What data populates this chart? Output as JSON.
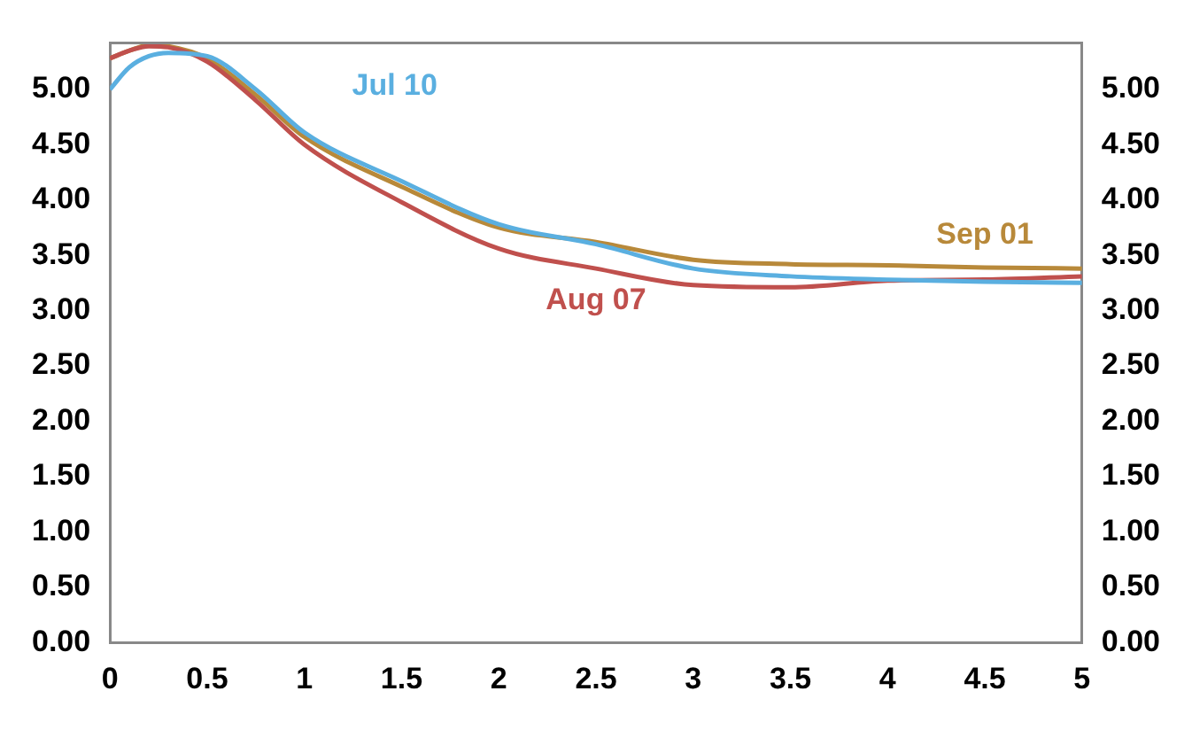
{
  "chart_data": {
    "type": "line",
    "x": [
      0,
      0.1,
      0.2,
      0.3,
      0.5,
      0.75,
      1,
      1.5,
      2,
      2.5,
      3,
      3.5,
      4,
      4.5,
      5
    ],
    "series": [
      {
        "name": "Jul 10",
        "color": "#5aafe0",
        "values": [
          5.0,
          5.2,
          5.3,
          5.33,
          5.3,
          5.0,
          4.61,
          4.17,
          3.78,
          3.6,
          3.38,
          3.31,
          3.28,
          3.26,
          3.25
        ]
      },
      {
        "name": "Aug 07",
        "color": "#c0504d",
        "values": [
          5.28,
          5.35,
          5.39,
          5.38,
          5.25,
          4.9,
          4.5,
          3.98,
          3.56,
          3.38,
          3.23,
          3.21,
          3.27,
          3.28,
          3.31
        ]
      },
      {
        "name": "Sep 01",
        "color": "#b8893a",
        "values": [
          5.28,
          5.35,
          5.4,
          5.39,
          5.28,
          4.95,
          4.57,
          4.12,
          3.75,
          3.62,
          3.46,
          3.42,
          3.41,
          3.39,
          3.38
        ]
      }
    ],
    "xlim": [
      0,
      5
    ],
    "xticks": [
      0,
      0.5,
      1,
      1.5,
      2,
      2.5,
      3,
      3.5,
      4,
      4.5,
      5
    ],
    "ylim": [
      0,
      5.42
    ],
    "yticks": [
      {
        "value": 0,
        "label": "0.00"
      },
      {
        "value": 0.5,
        "label": "0.50"
      },
      {
        "value": 1,
        "label": "1.00"
      },
      {
        "value": 1.5,
        "label": "1.50"
      },
      {
        "value": 2,
        "label": "2.00"
      },
      {
        "value": 2.5,
        "label": "2.50"
      },
      {
        "value": 3,
        "label": "3.00"
      },
      {
        "value": 3.5,
        "label": "3.50"
      },
      {
        "value": 4,
        "label": "4.00"
      },
      {
        "value": 4.5,
        "label": "4.50"
      },
      {
        "value": 5,
        "label": "5.00"
      }
    ],
    "y2lim": [
      0,
      5.42
    ],
    "y2ticks": [
      {
        "value": 0,
        "label": "0.00"
      },
      {
        "value": 0.5,
        "label": "0.50"
      },
      {
        "value": 1,
        "label": "1.00"
      },
      {
        "value": 1.5,
        "label": "1.50"
      },
      {
        "value": 2,
        "label": "2.00"
      },
      {
        "value": 2.5,
        "label": "2.50"
      },
      {
        "value": 3,
        "label": "3.00"
      },
      {
        "value": 3.5,
        "label": "3.50"
      },
      {
        "value": 4,
        "label": "4.00"
      },
      {
        "value": 4.5,
        "label": "4.50"
      },
      {
        "value": 5,
        "label": "5.00"
      }
    ],
    "grid": false,
    "legend": false,
    "marker": "none",
    "line_style": "solid"
  }
}
